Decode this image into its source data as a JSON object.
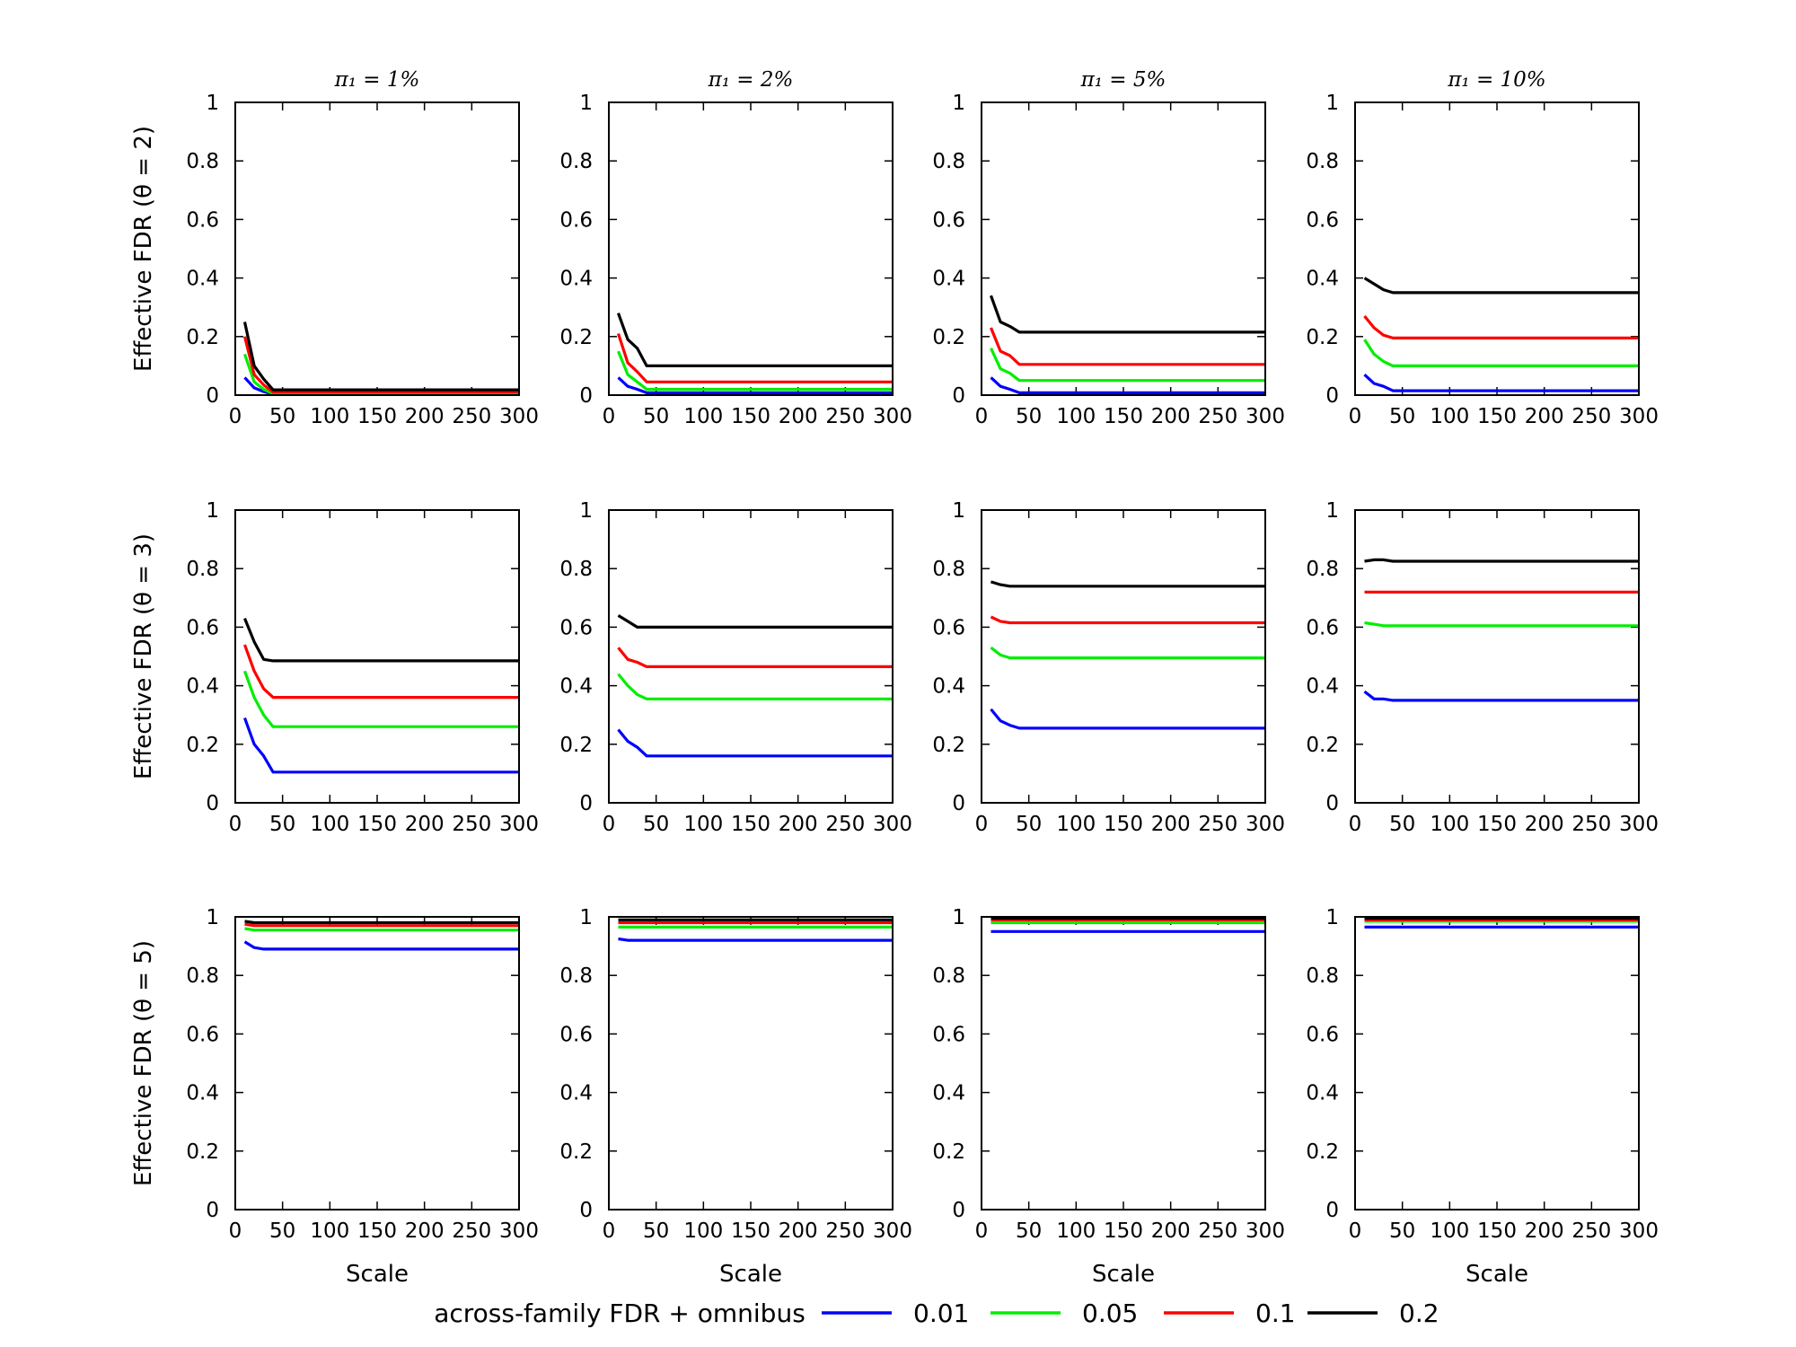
{
  "chart_data": {
    "type": "line",
    "layout": "grid-3x4",
    "x": [
      10,
      20,
      30,
      40,
      50,
      60,
      70,
      80,
      90,
      100,
      110,
      120,
      130,
      140,
      150,
      160,
      170,
      180,
      190,
      200,
      210,
      220,
      230,
      240,
      250,
      260,
      270,
      280,
      290,
      300
    ],
    "xlim": [
      0,
      300
    ],
    "ylim": [
      0,
      1
    ],
    "xticks": [
      "0",
      "50",
      "100",
      "150",
      "200",
      "250",
      "300"
    ],
    "yticks": [
      "0",
      "0.2",
      "0.4",
      "0.6",
      "0.8",
      "1"
    ],
    "xlabel": "Scale",
    "column_titles": [
      "π₁ = 1%",
      "π₁ = 2%",
      "π₁ = 5%",
      "π₁ = 10%"
    ],
    "row_labels": [
      "Effective FDR (θ = 2)",
      "Effective FDR (θ = 3)",
      "Effective FDR (θ = 5)"
    ],
    "legend": {
      "title": "across-family FDR + omnibus",
      "placement": "bottom-center",
      "entries": [
        {
          "name": "0.01",
          "color": "#0000ff"
        },
        {
          "name": "0.05",
          "color": "#00ee00"
        },
        {
          "name": "0.1",
          "color": "#ff0000"
        },
        {
          "name": "0.2",
          "color": "#000000"
        }
      ]
    },
    "panels": [
      {
        "row": 0,
        "col": 0,
        "series": [
          {
            "name": "0.01",
            "start": [
              0.06,
              0.025,
              0.012
            ],
            "tail": 0.003
          },
          {
            "name": "0.05",
            "start": [
              0.14,
              0.045,
              0.02
            ],
            "tail": 0.005
          },
          {
            "name": "0.1",
            "start": [
              0.2,
              0.07,
              0.035
            ],
            "tail": 0.01
          },
          {
            "name": "0.2",
            "start": [
              0.25,
              0.1,
              0.055
            ],
            "tail": 0.018
          }
        ]
      },
      {
        "row": 0,
        "col": 1,
        "series": [
          {
            "name": "0.01",
            "start": [
              0.06,
              0.03,
              0.02
            ],
            "tail": 0.008
          },
          {
            "name": "0.05",
            "start": [
              0.15,
              0.07,
              0.045
            ],
            "tail": 0.02
          },
          {
            "name": "0.1",
            "start": [
              0.21,
              0.11,
              0.08
            ],
            "tail": 0.045
          },
          {
            "name": "0.2",
            "start": [
              0.28,
              0.19,
              0.16
            ],
            "tail": 0.1
          }
        ]
      },
      {
        "row": 0,
        "col": 2,
        "series": [
          {
            "name": "0.01",
            "start": [
              0.06,
              0.03,
              0.02
            ],
            "tail": 0.008
          },
          {
            "name": "0.05",
            "start": [
              0.16,
              0.09,
              0.075
            ],
            "tail": 0.05
          },
          {
            "name": "0.1",
            "start": [
              0.23,
              0.15,
              0.135
            ],
            "tail": 0.105
          },
          {
            "name": "0.2",
            "start": [
              0.34,
              0.25,
              0.235
            ],
            "tail": 0.215
          }
        ]
      },
      {
        "row": 0,
        "col": 3,
        "series": [
          {
            "name": "0.01",
            "start": [
              0.07,
              0.04,
              0.03
            ],
            "tail": 0.015
          },
          {
            "name": "0.05",
            "start": [
              0.19,
              0.14,
              0.115
            ],
            "tail": 0.1
          },
          {
            "name": "0.1",
            "start": [
              0.27,
              0.23,
              0.205
            ],
            "tail": 0.195
          },
          {
            "name": "0.2",
            "start": [
              0.4,
              0.38,
              0.36
            ],
            "tail": 0.35
          }
        ]
      },
      {
        "row": 1,
        "col": 0,
        "series": [
          {
            "name": "0.01",
            "start": [
              0.29,
              0.2,
              0.16
            ],
            "tail": 0.105
          },
          {
            "name": "0.05",
            "start": [
              0.45,
              0.36,
              0.3
            ],
            "tail": 0.26
          },
          {
            "name": "0.1",
            "start": [
              0.54,
              0.45,
              0.39
            ],
            "tail": 0.36
          },
          {
            "name": "0.2",
            "start": [
              0.63,
              0.55,
              0.49
            ],
            "tail": 0.485
          }
        ]
      },
      {
        "row": 1,
        "col": 1,
        "series": [
          {
            "name": "0.01",
            "start": [
              0.25,
              0.21,
              0.19
            ],
            "tail": 0.16
          },
          {
            "name": "0.05",
            "start": [
              0.44,
              0.4,
              0.37
            ],
            "tail": 0.355
          },
          {
            "name": "0.1",
            "start": [
              0.53,
              0.49,
              0.48
            ],
            "tail": 0.465
          },
          {
            "name": "0.2",
            "start": [
              0.64,
              0.62,
              0.6
            ],
            "tail": 0.6
          }
        ]
      },
      {
        "row": 1,
        "col": 2,
        "series": [
          {
            "name": "0.01",
            "start": [
              0.32,
              0.28,
              0.265
            ],
            "tail": 0.255
          },
          {
            "name": "0.05",
            "start": [
              0.53,
              0.505,
              0.495
            ],
            "tail": 0.495
          },
          {
            "name": "0.1",
            "start": [
              0.635,
              0.62,
              0.615
            ],
            "tail": 0.615
          },
          {
            "name": "0.2",
            "start": [
              0.755,
              0.745,
              0.74
            ],
            "tail": 0.74
          }
        ]
      },
      {
        "row": 1,
        "col": 3,
        "series": [
          {
            "name": "0.01",
            "start": [
              0.38,
              0.355,
              0.355
            ],
            "tail": 0.35
          },
          {
            "name": "0.05",
            "start": [
              0.615,
              0.61,
              0.605
            ],
            "tail": 0.605
          },
          {
            "name": "0.1",
            "start": [
              0.72,
              0.72,
              0.72
            ],
            "tail": 0.72
          },
          {
            "name": "0.2",
            "start": [
              0.825,
              0.83,
              0.83
            ],
            "tail": 0.825
          }
        ]
      },
      {
        "row": 2,
        "col": 0,
        "series": [
          {
            "name": "0.01",
            "start": [
              0.915,
              0.895,
              0.89
            ],
            "tail": 0.89
          },
          {
            "name": "0.05",
            "start": [
              0.96,
              0.955,
              0.955
            ],
            "tail": 0.955
          },
          {
            "name": "0.1",
            "start": [
              0.975,
              0.97,
              0.97
            ],
            "tail": 0.97
          },
          {
            "name": "0.2",
            "start": [
              0.985,
              0.98,
              0.98
            ],
            "tail": 0.98
          }
        ]
      },
      {
        "row": 2,
        "col": 1,
        "series": [
          {
            "name": "0.01",
            "start": [
              0.925,
              0.92,
              0.92
            ],
            "tail": 0.92
          },
          {
            "name": "0.05",
            "start": [
              0.965,
              0.965,
              0.965
            ],
            "tail": 0.965
          },
          {
            "name": "0.1",
            "start": [
              0.98,
              0.98,
              0.98
            ],
            "tail": 0.98
          },
          {
            "name": "0.2",
            "start": [
              0.99,
              0.99,
              0.99
            ],
            "tail": 0.99
          }
        ]
      },
      {
        "row": 2,
        "col": 2,
        "series": [
          {
            "name": "0.01",
            "start": [
              0.95,
              0.95,
              0.95
            ],
            "tail": 0.95
          },
          {
            "name": "0.05",
            "start": [
              0.98,
              0.98,
              0.98
            ],
            "tail": 0.98
          },
          {
            "name": "0.1",
            "start": [
              0.99,
              0.99,
              0.99
            ],
            "tail": 0.99
          },
          {
            "name": "0.2",
            "start": [
              0.995,
              0.995,
              0.995
            ],
            "tail": 0.995
          }
        ]
      },
      {
        "row": 2,
        "col": 3,
        "series": [
          {
            "name": "0.01",
            "start": [
              0.965,
              0.965,
              0.965
            ],
            "tail": 0.965
          },
          {
            "name": "0.05",
            "start": [
              0.985,
              0.985,
              0.985
            ],
            "tail": 0.985
          },
          {
            "name": "0.1",
            "start": [
              0.99,
              0.99,
              0.99
            ],
            "tail": 0.99
          },
          {
            "name": "0.2",
            "start": [
              0.995,
              0.995,
              0.995
            ],
            "tail": 0.995
          }
        ]
      }
    ]
  }
}
